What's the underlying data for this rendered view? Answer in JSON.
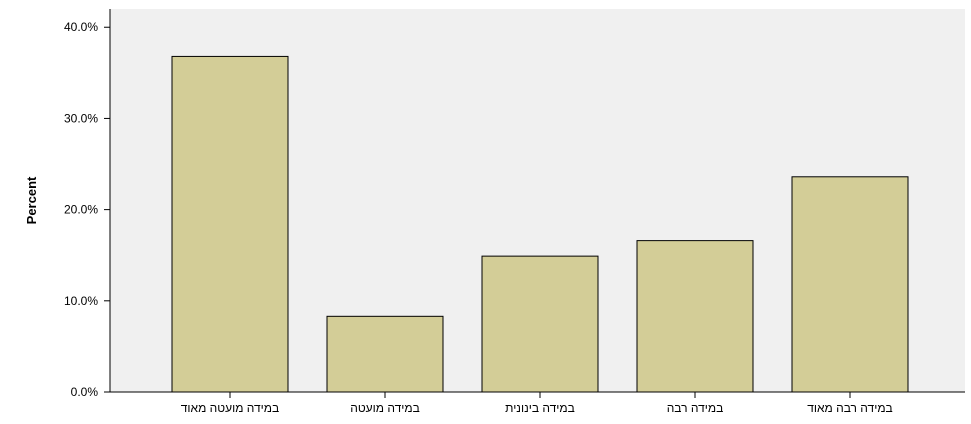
{
  "chart_data": {
    "type": "bar",
    "title": "",
    "xlabel": "",
    "ylabel": "Percent",
    "ylim": [
      0,
      42
    ],
    "yticks": [
      0,
      10,
      20,
      30,
      40
    ],
    "ytick_labels": [
      "0.0%",
      "10.0%",
      "20.0%",
      "30.0%",
      "40.0%"
    ],
    "categories": [
      "במידה מועטה מאוד",
      "במידה מועטה",
      "במידה בינונית",
      "במידה רבה",
      "במידה רבה מאוד"
    ],
    "values": [
      36.8,
      8.3,
      14.9,
      16.6,
      23.6
    ],
    "bar_color": "#d3cd97",
    "background_color": "#f0f0f0",
    "grid": false,
    "legend": "none"
  }
}
